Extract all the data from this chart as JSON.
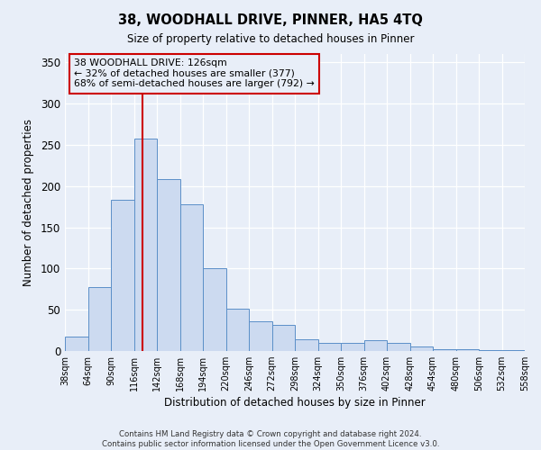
{
  "title": "38, WOODHALL DRIVE, PINNER, HA5 4TQ",
  "subtitle": "Size of property relative to detached houses in Pinner",
  "xlabel": "Distribution of detached houses by size in Pinner",
  "ylabel": "Number of detached properties",
  "bin_edges": [
    38,
    64,
    90,
    116,
    142,
    168,
    194,
    220,
    246,
    272,
    298,
    324,
    350,
    376,
    402,
    428,
    454,
    480,
    506,
    532,
    558
  ],
  "bar_heights": [
    18,
    77,
    183,
    257,
    208,
    178,
    100,
    51,
    36,
    32,
    14,
    10,
    10,
    13,
    10,
    6,
    2,
    2,
    1,
    1
  ],
  "bar_face_color": "#ccdaf0",
  "bar_edge_color": "#5b8fc8",
  "vline_x": 126,
  "vline_color": "#cc0000",
  "ylim": [
    0,
    360
  ],
  "yticks": [
    0,
    50,
    100,
    150,
    200,
    250,
    300,
    350
  ],
  "annotation_title": "38 WOODHALL DRIVE: 126sqm",
  "annotation_line1": "← 32% of detached houses are smaller (377)",
  "annotation_line2": "68% of semi-detached houses are larger (792) →",
  "annotation_box_color": "#cc0000",
  "footer_line1": "Contains HM Land Registry data © Crown copyright and database right 2024.",
  "footer_line2": "Contains public sector information licensed under the Open Government Licence v3.0.",
  "background_color": "#e8eef8",
  "tick_labels": [
    "38sqm",
    "64sqm",
    "90sqm",
    "116sqm",
    "142sqm",
    "168sqm",
    "194sqm",
    "220sqm",
    "246sqm",
    "272sqm",
    "298sqm",
    "324sqm",
    "350sqm",
    "376sqm",
    "402sqm",
    "428sqm",
    "454sqm",
    "480sqm",
    "506sqm",
    "532sqm",
    "558sqm"
  ]
}
